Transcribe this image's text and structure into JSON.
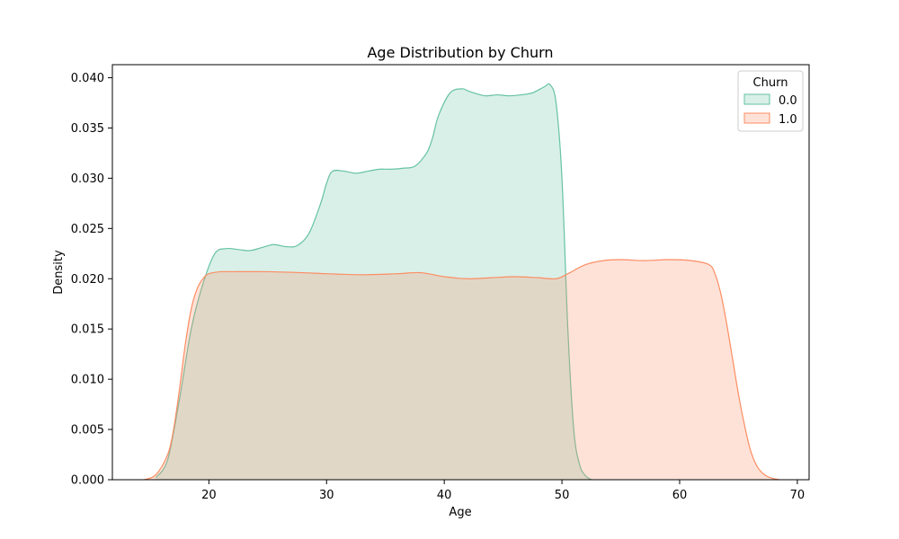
{
  "chart_data": {
    "type": "area",
    "title": "Age Distribution by Churn",
    "xlabel": "Age",
    "ylabel": "Density",
    "xlim": [
      11.8,
      71.0
    ],
    "ylim": [
      0,
      0.0413
    ],
    "xticks": [
      20,
      30,
      40,
      50,
      60,
      70
    ],
    "yticks": [
      0.0,
      0.005,
      0.01,
      0.015,
      0.02,
      0.025,
      0.03,
      0.035,
      0.04
    ],
    "xtick_labels": [
      "20",
      "30",
      "40",
      "50",
      "60",
      "70"
    ],
    "ytick_labels": [
      "0.000",
      "0.005",
      "0.010",
      "0.015",
      "0.020",
      "0.025",
      "0.030",
      "0.035",
      "0.040"
    ],
    "grid": false,
    "legend": {
      "title": "Churn",
      "position": "top-right"
    },
    "series": [
      {
        "name": "0.0",
        "color": "#66c2a5",
        "fill": "#d4eee5",
        "x": [
          15.5,
          16.5,
          17.5,
          18.5,
          19.5,
          20.5,
          21.5,
          22.5,
          23.5,
          24.5,
          25.5,
          26.5,
          27.5,
          28.5,
          29.5,
          30.0,
          30.5,
          31.5,
          32.5,
          33.5,
          34.5,
          35.5,
          36.5,
          37.5,
          38.5,
          39.0,
          39.5,
          40.5,
          41.5,
          42.0,
          42.5,
          43.5,
          44.5,
          45.5,
          46.5,
          47.5,
          48.5,
          49.0,
          49.5,
          50.0,
          50.5,
          51.0,
          51.5,
          52.0,
          52.5
        ],
        "y": [
          0.0002,
          0.002,
          0.008,
          0.015,
          0.0195,
          0.0225,
          0.023,
          0.0229,
          0.0228,
          0.0231,
          0.0234,
          0.0232,
          0.0233,
          0.0245,
          0.0275,
          0.0295,
          0.0307,
          0.0307,
          0.0305,
          0.0307,
          0.0309,
          0.0309,
          0.031,
          0.0312,
          0.0325,
          0.034,
          0.0362,
          0.0385,
          0.0389,
          0.0387,
          0.0385,
          0.0382,
          0.0383,
          0.0382,
          0.0383,
          0.0385,
          0.0391,
          0.0393,
          0.0375,
          0.03,
          0.015,
          0.005,
          0.0015,
          0.0004,
          0.0
        ]
      },
      {
        "name": "1.0",
        "color": "#fc8d62",
        "fill": "#fddfd2",
        "x": [
          14.5,
          15.5,
          16.5,
          17.0,
          17.5,
          18.0,
          18.5,
          19.0,
          19.5,
          20.0,
          21.0,
          22.0,
          25.0,
          28.0,
          30.0,
          33.0,
          36.0,
          38.0,
          40.0,
          42.0,
          44.0,
          46.0,
          48.0,
          49.5,
          50.5,
          52.0,
          53.5,
          55.0,
          57.0,
          59.0,
          61.0,
          62.5,
          63.0,
          63.5,
          64.0,
          64.5,
          65.0,
          65.5,
          66.0,
          66.5,
          67.0,
          67.5,
          68.0,
          68.5
        ],
        "y": [
          0.0,
          0.0005,
          0.0025,
          0.005,
          0.009,
          0.0135,
          0.017,
          0.019,
          0.02,
          0.0205,
          0.0207,
          0.0207,
          0.0207,
          0.0206,
          0.0205,
          0.0204,
          0.0205,
          0.0206,
          0.0202,
          0.02,
          0.0201,
          0.0202,
          0.0201,
          0.02,
          0.0205,
          0.0214,
          0.0218,
          0.0219,
          0.0218,
          0.0219,
          0.0218,
          0.0214,
          0.0205,
          0.0185,
          0.0155,
          0.012,
          0.0085,
          0.0055,
          0.003,
          0.0015,
          0.0007,
          0.0003,
          0.0001,
          0.0
        ]
      }
    ]
  }
}
